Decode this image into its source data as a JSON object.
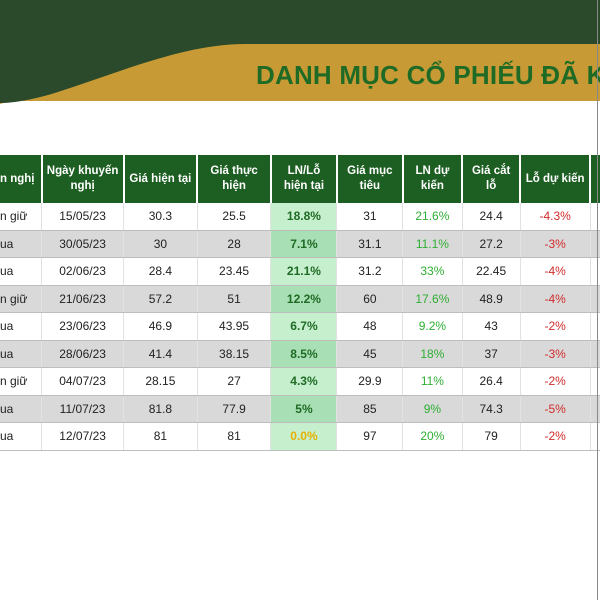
{
  "title": "DANH MỤC CỔ PHIẾU ĐÃ K",
  "colors": {
    "dark_green": "#2b4a2c",
    "gold": "#c89a35",
    "header_green": "#1d5e22",
    "title_green": "#1f6b25",
    "gain_green": "#2fae33",
    "loss_red": "#d12b2b",
    "zero_yellow": "#e5b100"
  },
  "table": {
    "headers": [
      "n nghị",
      "Ngày khuyến nghị",
      "Giá hiện tại",
      "Giá thực hiện",
      "LN/Lỗ hiện tại",
      "Giá mục tiêu",
      "LN dự kiến",
      "Giá cắt lỗ",
      "Lỗ dự kiến",
      ""
    ],
    "rows": [
      {
        "recommendation": "n giữ",
        "date": "15/05/23",
        "current_price": "30.3",
        "exec_price": "25.5",
        "pl_now": "18.8%",
        "target": "31",
        "expected_profit": "21.6%",
        "stop_loss": "24.4",
        "expected_loss": "-4.3%"
      },
      {
        "recommendation": "ua",
        "date": "30/05/23",
        "current_price": "30",
        "exec_price": "28",
        "pl_now": "7.1%",
        "target": "31.1",
        "expected_profit": "11.1%",
        "stop_loss": "27.2",
        "expected_loss": "-3%"
      },
      {
        "recommendation": "ua",
        "date": "02/06/23",
        "current_price": "28.4",
        "exec_price": "23.45",
        "pl_now": "21.1%",
        "target": "31.2",
        "expected_profit": "33%",
        "stop_loss": "22.45",
        "expected_loss": "-4%"
      },
      {
        "recommendation": "n giữ",
        "date": "21/06/23",
        "current_price": "57.2",
        "exec_price": "51",
        "pl_now": "12.2%",
        "target": "60",
        "expected_profit": "17.6%",
        "stop_loss": "48.9",
        "expected_loss": "-4%"
      },
      {
        "recommendation": "ua",
        "date": "23/06/23",
        "current_price": "46.9",
        "exec_price": "43.95",
        "pl_now": "6.7%",
        "target": "48",
        "expected_profit": "9.2%",
        "stop_loss": "43",
        "expected_loss": "-2%"
      },
      {
        "recommendation": "ua",
        "date": "28/06/23",
        "current_price": "41.4",
        "exec_price": "38.15",
        "pl_now": "8.5%",
        "target": "45",
        "expected_profit": "18%",
        "stop_loss": "37",
        "expected_loss": "-3%"
      },
      {
        "recommendation": "n giữ",
        "date": "04/07/23",
        "current_price": "28.15",
        "exec_price": "27",
        "pl_now": "4.3%",
        "target": "29.9",
        "expected_profit": "11%",
        "stop_loss": "26.4",
        "expected_loss": "-2%"
      },
      {
        "recommendation": "ua",
        "date": "11/07/23",
        "current_price": "81.8",
        "exec_price": "77.9",
        "pl_now": "5%",
        "target": "85",
        "expected_profit": "9%",
        "stop_loss": "74.3",
        "expected_loss": "-5%"
      },
      {
        "recommendation": "ua",
        "date": "12/07/23",
        "current_price": "81",
        "exec_price": "81",
        "pl_now": "0.0%",
        "target": "97",
        "expected_profit": "20%",
        "stop_loss": "79",
        "expected_loss": "-2%"
      }
    ]
  }
}
